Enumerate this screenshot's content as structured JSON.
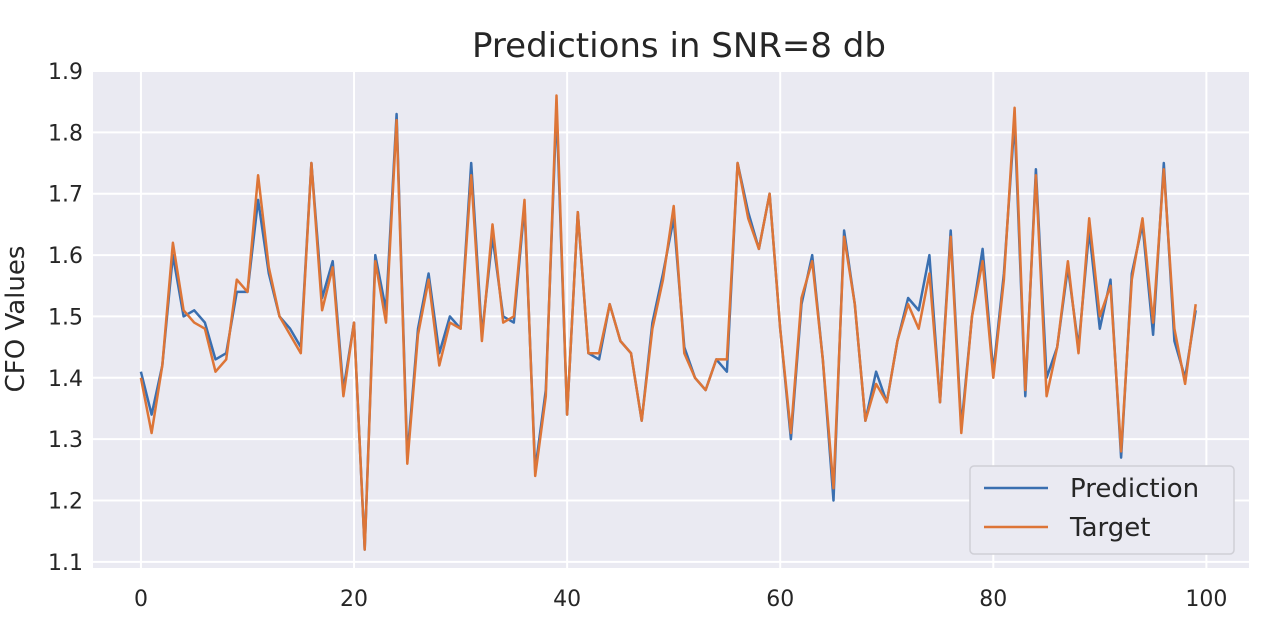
{
  "chart_data": {
    "type": "line",
    "title": "Predictions in SNR=8 db",
    "xlabel": "",
    "ylabel": "CFO Values",
    "xlim": [
      -4.5,
      104
    ],
    "ylim": [
      1.09,
      1.9
    ],
    "xticks": [
      0,
      20,
      40,
      60,
      80,
      100
    ],
    "yticks": [
      1.1,
      1.2,
      1.3,
      1.4,
      1.5,
      1.6,
      1.7,
      1.8,
      1.9
    ],
    "grid": true,
    "legend": "bottom-right",
    "series": [
      {
        "name": "Prediction",
        "color": "#3a6fb0",
        "values": [
          1.41,
          1.34,
          1.42,
          1.6,
          1.5,
          1.51,
          1.49,
          1.43,
          1.44,
          1.54,
          1.54,
          1.69,
          1.57,
          1.5,
          1.48,
          1.45,
          1.75,
          1.53,
          1.59,
          1.38,
          1.49,
          1.12,
          1.6,
          1.51,
          1.83,
          1.27,
          1.48,
          1.57,
          1.44,
          1.5,
          1.48,
          1.75,
          1.47,
          1.63,
          1.5,
          1.49,
          1.68,
          1.25,
          1.38,
          1.84,
          1.34,
          1.67,
          1.44,
          1.43,
          1.52,
          1.46,
          1.44,
          1.33,
          1.49,
          1.57,
          1.66,
          1.45,
          1.4,
          1.38,
          1.43,
          1.41,
          1.75,
          1.67,
          1.61,
          1.7,
          1.48,
          1.3,
          1.52,
          1.6,
          1.43,
          1.2,
          1.64,
          1.52,
          1.33,
          1.41,
          1.36,
          1.46,
          1.53,
          1.51,
          1.6,
          1.36,
          1.64,
          1.32,
          1.5,
          1.61,
          1.41,
          1.57,
          1.82,
          1.37,
          1.74,
          1.4,
          1.45,
          1.58,
          1.45,
          1.64,
          1.48,
          1.56,
          1.27,
          1.57,
          1.65,
          1.47,
          1.75,
          1.46,
          1.4,
          1.51
        ]
      },
      {
        "name": "Target",
        "color": "#dd7537",
        "values": [
          1.4,
          1.31,
          1.42,
          1.62,
          1.51,
          1.49,
          1.48,
          1.41,
          1.43,
          1.56,
          1.54,
          1.73,
          1.58,
          1.5,
          1.47,
          1.44,
          1.75,
          1.51,
          1.58,
          1.37,
          1.49,
          1.12,
          1.59,
          1.49,
          1.82,
          1.26,
          1.47,
          1.56,
          1.42,
          1.49,
          1.48,
          1.73,
          1.46,
          1.65,
          1.49,
          1.5,
          1.69,
          1.24,
          1.37,
          1.86,
          1.34,
          1.67,
          1.44,
          1.44,
          1.52,
          1.46,
          1.44,
          1.33,
          1.48,
          1.56,
          1.68,
          1.44,
          1.4,
          1.38,
          1.43,
          1.43,
          1.75,
          1.66,
          1.61,
          1.7,
          1.48,
          1.31,
          1.53,
          1.59,
          1.43,
          1.22,
          1.63,
          1.52,
          1.33,
          1.39,
          1.36,
          1.46,
          1.52,
          1.48,
          1.57,
          1.36,
          1.63,
          1.31,
          1.5,
          1.59,
          1.4,
          1.56,
          1.84,
          1.38,
          1.73,
          1.37,
          1.45,
          1.59,
          1.44,
          1.66,
          1.5,
          1.55,
          1.28,
          1.56,
          1.66,
          1.49,
          1.74,
          1.48,
          1.39,
          1.52
        ]
      }
    ]
  }
}
